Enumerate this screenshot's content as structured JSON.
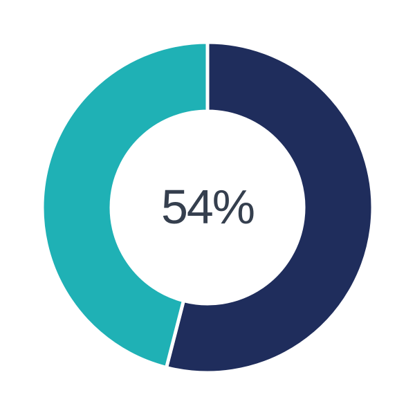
{
  "chart_data": {
    "type": "pie",
    "variant": "donut",
    "title": "",
    "center_label": "54%",
    "series": [
      {
        "name": "value",
        "value": 54,
        "color": "#1f2d5c"
      },
      {
        "name": "remainder",
        "value": 46,
        "color": "#1fb1b5"
      }
    ],
    "total": 100,
    "start_angle_deg_from_top": 0,
    "direction": "clockwise",
    "outer_radius": 239,
    "inner_radius": 139,
    "center": {
      "x": 300,
      "y": 300
    },
    "slice_border_color": "#ffffff",
    "slice_border_width": 5,
    "background_color": "#ffffff",
    "label_color": "#353f4e",
    "legend": "none"
  }
}
